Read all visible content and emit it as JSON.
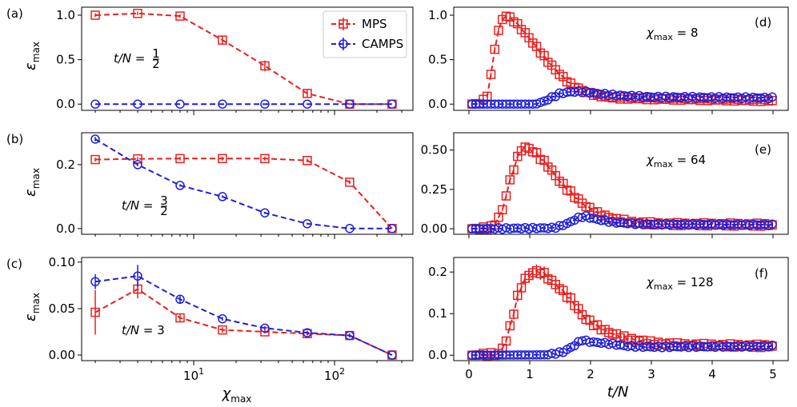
{
  "figure": {
    "xlabel_left_sym": "χ",
    "xlabel_left_sub": "max",
    "xlabel_right": "t/N",
    "ylabel_sym": "ε",
    "ylabel_sub": "max"
  },
  "colors": {
    "mps": "#e8211f",
    "camps": "#1f1fd9"
  },
  "legend": {
    "location": "top-right of panel (a)",
    "entries": [
      "MPS",
      "CAMPS"
    ]
  },
  "chart_data": [
    {
      "panel": "(a)",
      "type": "line",
      "xscale": "log",
      "xlim": [
        1.6,
        360
      ],
      "ylim": [
        -0.07,
        1.09
      ],
      "xticks": [
        {
          "v": 10,
          "b": "10",
          "e": "1"
        },
        {
          "v": 100,
          "b": "10",
          "e": "2"
        }
      ],
      "yticks": [
        {
          "v": 0.0,
          "t": "0.0"
        },
        {
          "v": 0.5,
          "t": "0.5"
        },
        {
          "v": 1.0,
          "t": "1.0"
        }
      ],
      "annotation": {
        "pre": "t/N = ",
        "frac": [
          "1",
          "2"
        ]
      },
      "x": [
        2,
        4,
        8,
        16,
        32,
        64,
        128,
        256
      ],
      "series": [
        {
          "name": "MPS",
          "values": [
            1.0,
            1.02,
            0.99,
            0.72,
            0.43,
            0.12,
            0.0,
            0.0
          ],
          "err": [
            0.02,
            0.02,
            0.02,
            0.05,
            0.06,
            0.04,
            0,
            0
          ]
        },
        {
          "name": "CAMPS",
          "values": [
            0,
            0,
            0,
            0,
            0,
            0,
            0,
            0
          ],
          "err": [
            0,
            0,
            0,
            0,
            0,
            0,
            0,
            0
          ]
        }
      ]
    },
    {
      "panel": "(b)",
      "type": "line",
      "xscale": "log",
      "xlim": [
        1.6,
        360
      ],
      "ylim": [
        -0.018,
        0.3
      ],
      "xticks": [
        {
          "v": 10,
          "b": "10",
          "e": "1"
        },
        {
          "v": 100,
          "b": "10",
          "e": "2"
        }
      ],
      "yticks": [
        {
          "v": 0.0,
          "t": "0.0"
        },
        {
          "v": 0.2,
          "t": "0.2"
        }
      ],
      "annotation": {
        "pre": "t/N = ",
        "frac": [
          "3",
          "2"
        ]
      },
      "x": [
        2,
        4,
        8,
        16,
        32,
        64,
        128,
        256
      ],
      "series": [
        {
          "name": "MPS",
          "values": [
            0.216,
            0.218,
            0.219,
            0.219,
            0.219,
            0.213,
            0.145,
            0.0
          ],
          "err": [
            0.006,
            0.006,
            0.006,
            0.006,
            0.006,
            0.006,
            0.006,
            0
          ]
        },
        {
          "name": "CAMPS",
          "values": [
            0.28,
            0.2,
            0.135,
            0.1,
            0.049,
            0.015,
            0.0,
            0.0
          ],
          "err": [
            0.007,
            0.005,
            0.004,
            0.004,
            0.003,
            0.002,
            0,
            0
          ]
        }
      ]
    },
    {
      "panel": "(c)",
      "type": "line",
      "xscale": "log",
      "xlim": [
        1.6,
        360
      ],
      "ylim": [
        -0.006,
        0.105
      ],
      "xticks": [
        {
          "v": 10,
          "b": "10",
          "e": "1"
        },
        {
          "v": 100,
          "b": "10",
          "e": "2"
        }
      ],
      "yticks": [
        {
          "v": 0.0,
          "t": "0.00"
        },
        {
          "v": 0.05,
          "t": "0.05"
        },
        {
          "v": 0.1,
          "t": "0.10"
        }
      ],
      "annotation": {
        "pre": "t/N = 3",
        "frac": null
      },
      "x": [
        2,
        4,
        8,
        16,
        32,
        64,
        128,
        256
      ],
      "series": [
        {
          "name": "MPS",
          "values": [
            0.046,
            0.071,
            0.04,
            0.027,
            0.025,
            0.023,
            0.021,
            0.0
          ],
          "err": [
            0.024,
            0.01,
            0.004,
            0.003,
            0.002,
            0.002,
            0.002,
            0
          ]
        },
        {
          "name": "CAMPS",
          "values": [
            0.079,
            0.085,
            0.06,
            0.039,
            0.029,
            0.024,
            0.021,
            0.0
          ],
          "err": [
            0.008,
            0.012,
            0.004,
            0.002,
            0.002,
            0.002,
            0.002,
            0
          ]
        }
      ]
    },
    {
      "panel": "(d)",
      "type": "line",
      "xlim": [
        -0.25,
        5.25
      ],
      "ylim": [
        -0.07,
        1.09
      ],
      "xticks": [],
      "yticks": [
        {
          "v": 0.0,
          "t": "0.0"
        },
        {
          "v": 0.5,
          "t": "0.5"
        },
        {
          "v": 1.0,
          "t": "1.0"
        }
      ],
      "annotation": {
        "pre": "χ",
        "sub": "max",
        "post": " = 8"
      },
      "x_range": [
        0.05,
        5.0
      ],
      "x_step": 0.0625,
      "series": [
        {
          "name": "MPS",
          "curve": [
            [
              0.05,
              0
            ],
            [
              0.2,
              0.01
            ],
            [
              0.3,
              0.1
            ],
            [
              0.37,
              0.35
            ],
            [
              0.45,
              0.75
            ],
            [
              0.55,
              0.95
            ],
            [
              0.62,
              1.0
            ],
            [
              0.75,
              0.93
            ],
            [
              0.9,
              0.82
            ],
            [
              1.1,
              0.65
            ],
            [
              1.3,
              0.48
            ],
            [
              1.5,
              0.33
            ],
            [
              1.7,
              0.21
            ],
            [
              1.9,
              0.14
            ],
            [
              2.1,
              0.1
            ],
            [
              2.4,
              0.07
            ],
            [
              3.0,
              0.06
            ],
            [
              4.0,
              0.05
            ],
            [
              5.0,
              0.04
            ]
          ],
          "noise": 0.012,
          "err": 0.03
        },
        {
          "name": "CAMPS",
          "curve": [
            [
              0.05,
              0
            ],
            [
              1.05,
              0
            ],
            [
              1.2,
              0.02
            ],
            [
              1.35,
              0.07
            ],
            [
              1.5,
              0.12
            ],
            [
              1.7,
              0.14
            ],
            [
              1.9,
              0.14
            ],
            [
              2.1,
              0.12
            ],
            [
              2.4,
              0.1
            ],
            [
              3.0,
              0.08
            ],
            [
              5.0,
              0.07
            ]
          ],
          "noise": 0.01,
          "err": 0.02
        }
      ]
    },
    {
      "panel": "(e)",
      "type": "line",
      "xlim": [
        -0.25,
        5.25
      ],
      "ylim": [
        -0.035,
        0.61
      ],
      "xticks": [],
      "yticks": [
        {
          "v": 0.0,
          "t": "0.00"
        },
        {
          "v": 0.25,
          "t": "0.25"
        },
        {
          "v": 0.5,
          "t": "0.50"
        }
      ],
      "annotation": {
        "pre": "χ",
        "sub": "max",
        "post": " = 64"
      },
      "x_range": [
        0.05,
        5.0
      ],
      "x_step": 0.0625,
      "series": [
        {
          "name": "MPS",
          "curve": [
            [
              0.05,
              0
            ],
            [
              0.35,
              0.005
            ],
            [
              0.45,
              0.04
            ],
            [
              0.55,
              0.12
            ],
            [
              0.65,
              0.27
            ],
            [
              0.75,
              0.4
            ],
            [
              0.85,
              0.5
            ],
            [
              0.95,
              0.52
            ],
            [
              1.1,
              0.48
            ],
            [
              1.3,
              0.4
            ],
            [
              1.5,
              0.3
            ],
            [
              1.7,
              0.22
            ],
            [
              1.9,
              0.15
            ],
            [
              2.1,
              0.1
            ],
            [
              2.4,
              0.06
            ],
            [
              2.7,
              0.04
            ],
            [
              3.2,
              0.03
            ],
            [
              5.0,
              0.025
            ]
          ],
          "noise": 0.01,
          "err": 0.025
        },
        {
          "name": "CAMPS",
          "curve": [
            [
              0.05,
              0
            ],
            [
              1.4,
              0.005
            ],
            [
              1.6,
              0.03
            ],
            [
              1.8,
              0.07
            ],
            [
              1.9,
              0.08
            ],
            [
              2.1,
              0.06
            ],
            [
              2.4,
              0.04
            ],
            [
              2.8,
              0.03
            ],
            [
              5.0,
              0.025
            ]
          ],
          "noise": 0.005,
          "err": 0.01
        }
      ]
    },
    {
      "panel": "(f)",
      "type": "line",
      "xlim": [
        -0.25,
        5.25
      ],
      "ylim": [
        -0.013,
        0.235
      ],
      "xticks": [
        {
          "v": 0,
          "t": "0"
        },
        {
          "v": 1,
          "t": "1"
        },
        {
          "v": 2,
          "t": "2"
        },
        {
          "v": 3,
          "t": "3"
        },
        {
          "v": 4,
          "t": "4"
        },
        {
          "v": 5,
          "t": "5"
        }
      ],
      "yticks": [
        {
          "v": 0.0,
          "t": "0.0"
        },
        {
          "v": 0.1,
          "t": "0.1"
        },
        {
          "v": 0.2,
          "t": "0.2"
        }
      ],
      "annotation": {
        "pre": "χ",
        "sub": "max",
        "post": " = 128"
      },
      "x_range": [
        0.05,
        5.0
      ],
      "x_step": 0.0625,
      "series": [
        {
          "name": "MPS",
          "curve": [
            [
              0.05,
              0
            ],
            [
              0.5,
              0.003
            ],
            [
              0.6,
              0.03
            ],
            [
              0.7,
              0.08
            ],
            [
              0.8,
              0.14
            ],
            [
              0.9,
              0.18
            ],
            [
              1.05,
              0.2
            ],
            [
              1.2,
              0.2
            ],
            [
              1.35,
              0.18
            ],
            [
              1.5,
              0.16
            ],
            [
              1.7,
              0.13
            ],
            [
              1.9,
              0.09
            ],
            [
              2.1,
              0.07
            ],
            [
              2.3,
              0.055
            ],
            [
              2.6,
              0.04
            ],
            [
              3.0,
              0.03
            ],
            [
              3.5,
              0.025
            ],
            [
              5.0,
              0.022
            ]
          ],
          "noise": 0.004,
          "err": 0.015
        },
        {
          "name": "CAMPS",
          "curve": [
            [
              0.05,
              0
            ],
            [
              1.3,
              0.001
            ],
            [
              1.55,
              0.008
            ],
            [
              1.75,
              0.025
            ],
            [
              1.85,
              0.037
            ],
            [
              2.0,
              0.032
            ],
            [
              2.3,
              0.028
            ],
            [
              2.6,
              0.022
            ],
            [
              3.0,
              0.02
            ],
            [
              5.0,
              0.022
            ]
          ],
          "noise": 0.002,
          "err": 0.004
        }
      ]
    }
  ]
}
